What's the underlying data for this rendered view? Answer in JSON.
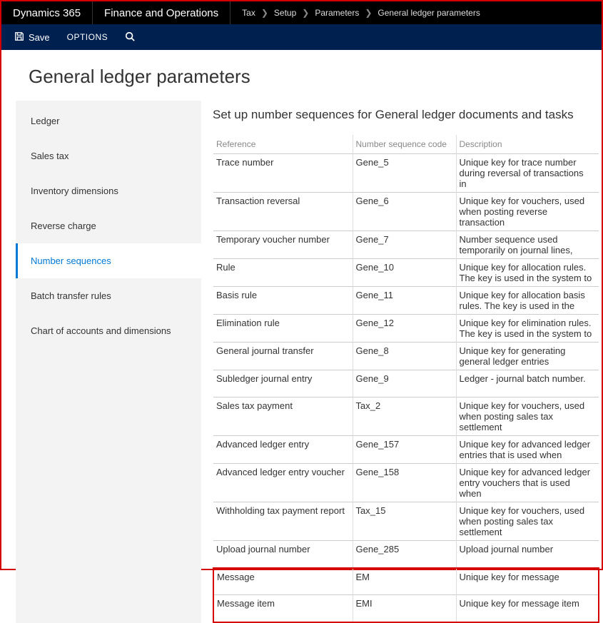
{
  "topbar": {
    "brand": "Dynamics 365",
    "module": "Finance and Operations",
    "breadcrumb": [
      "Tax",
      "Setup",
      "Parameters",
      "General ledger parameters"
    ]
  },
  "actionbar": {
    "save_label": "Save",
    "options_label": "OPTIONS"
  },
  "page_title": "General ledger parameters",
  "sidebar": {
    "items": [
      {
        "label": "Ledger",
        "active": false
      },
      {
        "label": "Sales tax",
        "active": false
      },
      {
        "label": "Inventory dimensions",
        "active": false
      },
      {
        "label": "Reverse charge",
        "active": false
      },
      {
        "label": "Number sequences",
        "active": true
      },
      {
        "label": "Batch transfer rules",
        "active": false
      },
      {
        "label": "Chart of accounts and dimensions",
        "active": false
      }
    ]
  },
  "main": {
    "section_heading": "Set up number sequences for General ledger documents and tasks",
    "columns": [
      "Reference",
      "Number sequence code",
      "Description"
    ],
    "rows": [
      {
        "reference": "Trace number",
        "code": "Gene_5",
        "description": "Unique key for trace number during reversal of transactions in"
      },
      {
        "reference": "Transaction reversal",
        "code": "Gene_6",
        "description": "Unique key for vouchers, used when posting reverse transaction"
      },
      {
        "reference": "Temporary voucher number",
        "code": "Gene_7",
        "description": "Number sequence used temporarily on journal lines,"
      },
      {
        "reference": "Rule",
        "code": "Gene_10",
        "description": "Unique key for allocation rules. The key is used in the system to"
      },
      {
        "reference": "Basis rule",
        "code": "Gene_11",
        "description": "Unique key for allocation basis rules. The key is used in the"
      },
      {
        "reference": "Elimination rule",
        "code": "Gene_12",
        "description": "Unique key for elimination rules. The key is used in the system to"
      },
      {
        "reference": "General journal transfer",
        "code": "Gene_8",
        "description": "Unique key for generating general ledger entries"
      },
      {
        "reference": "Subledger journal entry",
        "code": "Gene_9",
        "description": "Ledger - journal batch number."
      },
      {
        "reference": "Sales tax payment",
        "code": "Tax_2",
        "description": "Unique key for vouchers, used when posting sales tax settlement"
      },
      {
        "reference": "Advanced ledger entry",
        "code": "Gene_157",
        "description": "Unique key for advanced ledger entries that is used when"
      },
      {
        "reference": "Advanced ledger entry voucher",
        "code": "Gene_158",
        "description": "Unique key for advanced ledger entry vouchers that is used when"
      },
      {
        "reference": "Withholding tax payment report",
        "code": "Tax_15",
        "description": "Unique key for vouchers, used when posting sales tax settlement"
      },
      {
        "reference": "Upload journal number",
        "code": "Gene_285",
        "description": "Upload journal number"
      },
      {
        "reference": "Message",
        "code": "EM",
        "description": "Unique key for message"
      },
      {
        "reference": "Message item",
        "code": "EMI",
        "description": "Unique key for message item"
      }
    ],
    "highlight_start_index": 13
  },
  "colors": {
    "accent": "#0078d4",
    "actionbar_bg": "#002050",
    "highlight_border": "#d40000"
  }
}
